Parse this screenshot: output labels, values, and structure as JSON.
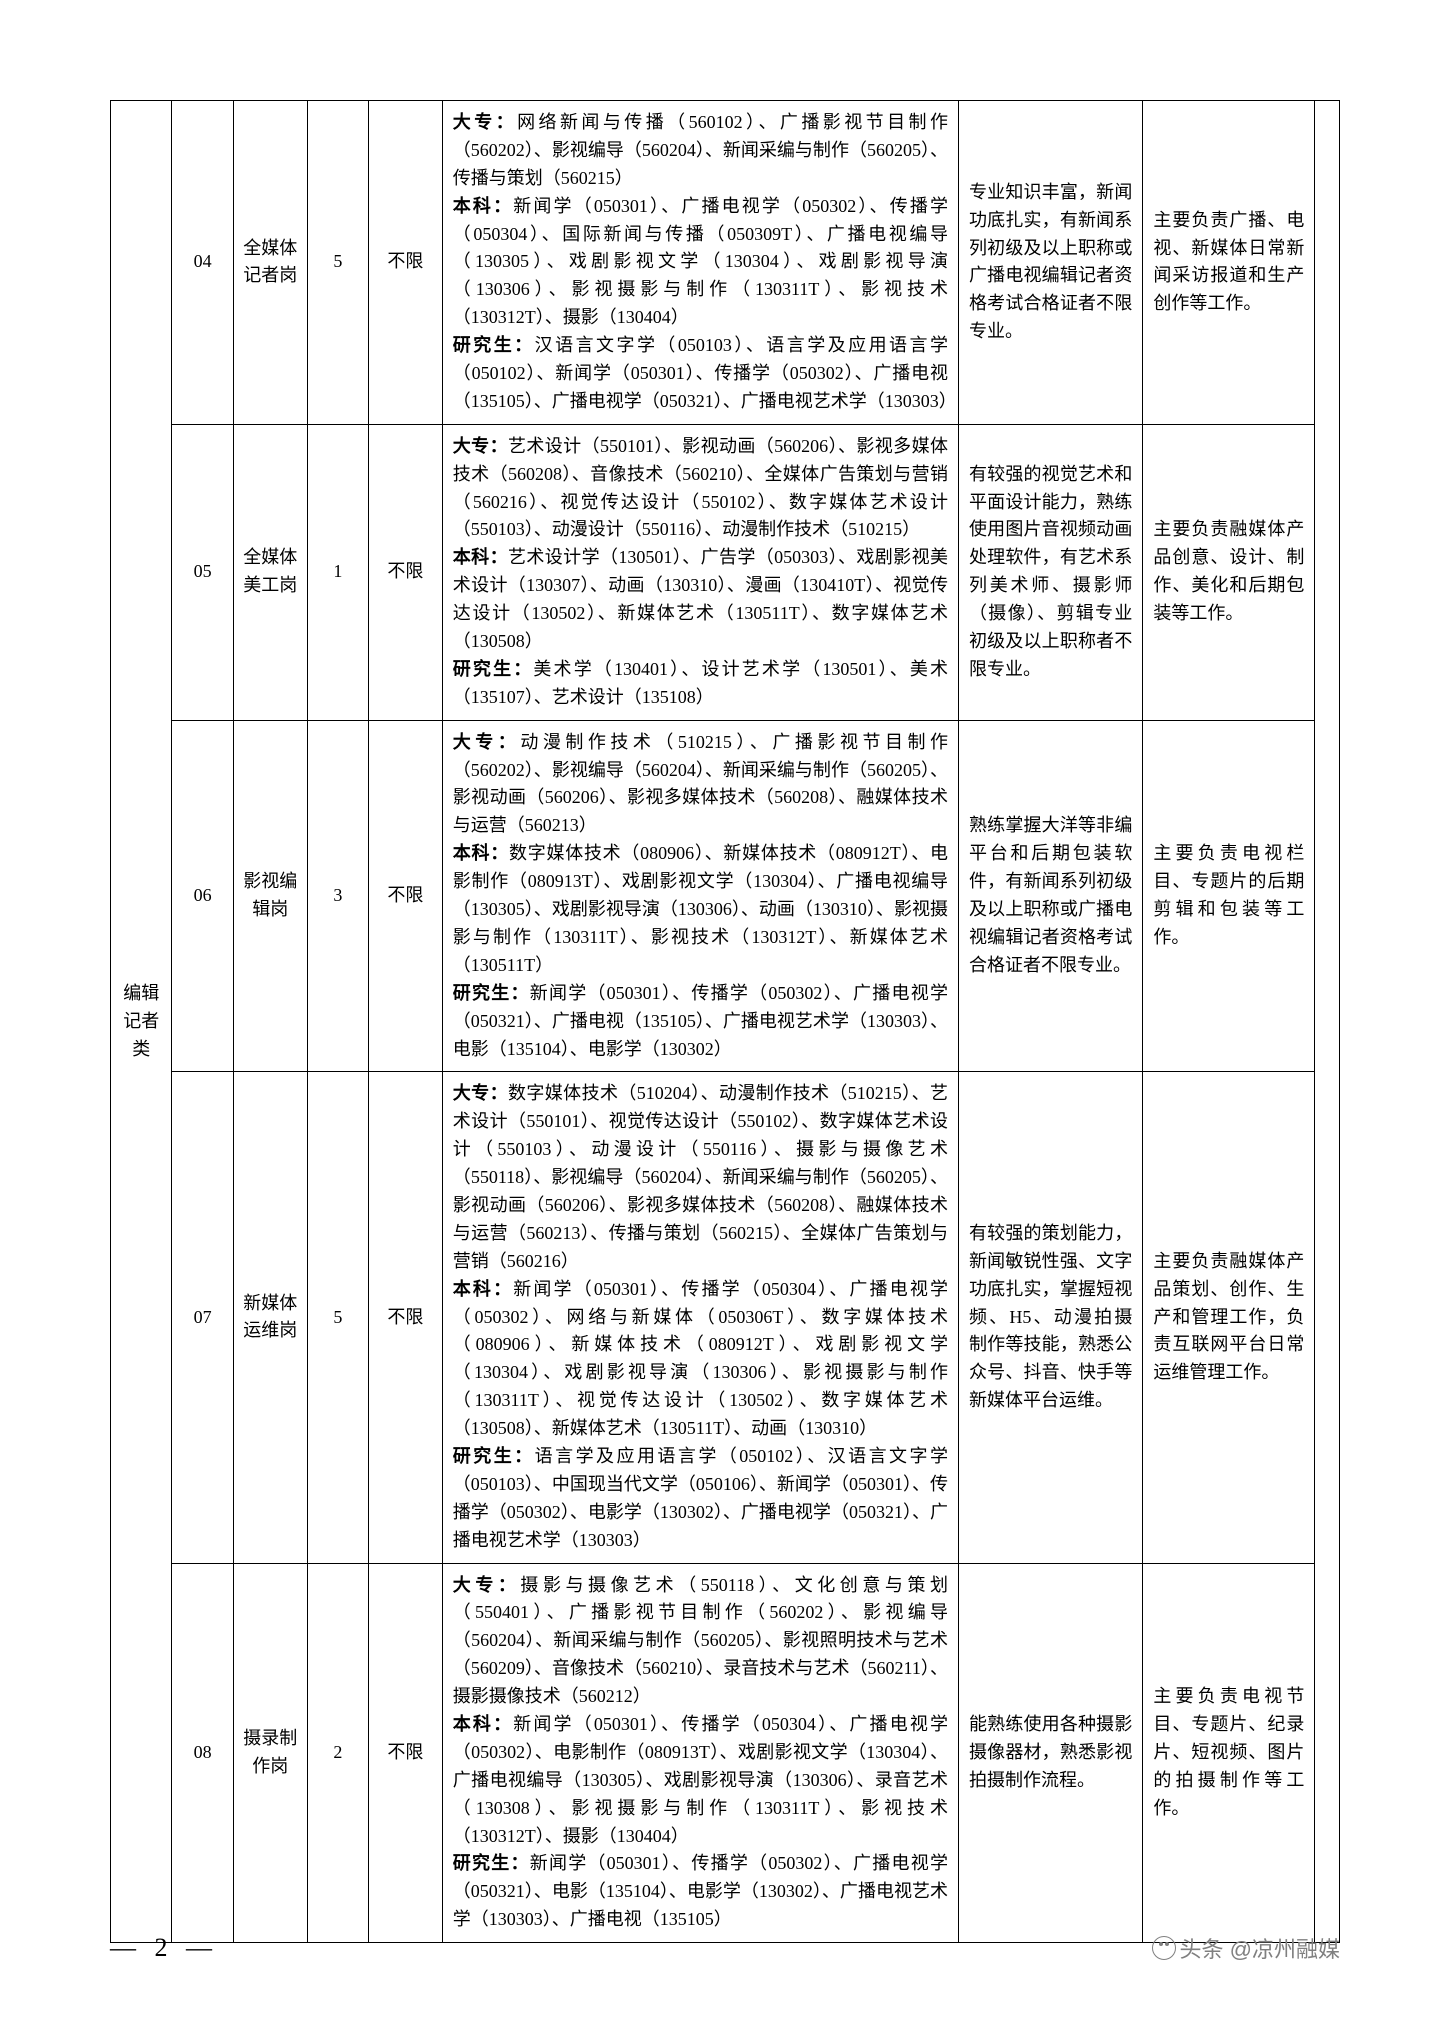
{
  "pageNumber": "2",
  "watermark": "头条 @凉州融媒",
  "category": "编辑记者类",
  "rows": [
    {
      "code": "04",
      "post": "全媒体记者岗",
      "count": "5",
      "limit": "不限",
      "major_dz": "网络新闻与传播（560102）、广播影视节目制作（560202）、影视编导（560204）、新闻采编与制作（560205）、传播与策划（560215）",
      "major_bk": "新闻学（050301）、广播电视学（050302）、传播学（050304）、国际新闻与传播（050309T）、广播电视编导（130305）、戏剧影视文学（130304）、戏剧影视导演（130306）、影视摄影与制作（130311T）、影视技术（130312T）、摄影（130404）",
      "major_yjs": "汉语言文字学（050103）、语言学及应用语言学（050102）、新闻学（050301）、传播学（050302）、广播电视（135105）、广播电视学（050321）、广播电视艺术学（130303）",
      "req": "专业知识丰富，新闻功底扎实，有新闻系列初级及以上职称或广播电视编辑记者资格考试合格证者不限专业。",
      "duty": "主要负责广播、电视、新媒体日常新闻采访报道和生产创作等工作。"
    },
    {
      "code": "05",
      "post": "全媒体美工岗",
      "count": "1",
      "limit": "不限",
      "major_dz": "艺术设计（550101）、影视动画（560206）、影视多媒体技术（560208）、音像技术（560210）、全媒体广告策划与营销（560216）、视觉传达设计（550102）、数字媒体艺术设计（550103）、动漫设计（550116）、动漫制作技术（510215）",
      "major_bk": "艺术设计学（130501）、广告学（050303）、戏剧影视美术设计（130307）、动画（130310）、漫画（130410T）、视觉传达设计（130502）、新媒体艺术（130511T）、数字媒体艺术（130508）",
      "major_yjs": "美术学（130401）、设计艺术学（130501）、美术（135107）、艺术设计（135108）",
      "req": "有较强的视觉艺术和平面设计能力，熟练使用图片音视频动画处理软件，有艺术系列美术师、摄影师（摄像）、剪辑专业初级及以上职称者不限专业。",
      "duty": "主要负责融媒体产品创意、设计、制作、美化和后期包装等工作。"
    },
    {
      "code": "06",
      "post": "影视编辑岗",
      "count": "3",
      "limit": "不限",
      "major_dz": "动漫制作技术（510215）、广播影视节目制作（560202）、影视编导（560204）、新闻采编与制作（560205）、影视动画（560206）、影视多媒体技术（560208）、融媒体技术与运营（560213）",
      "major_bk": "数字媒体技术（080906）、新媒体技术（080912T）、电影制作（080913T）、戏剧影视文学（130304）、广播电视编导（130305）、戏剧影视导演（130306）、动画（130310）、影视摄影与制作（130311T）、影视技术（130312T）、新媒体艺术（130511T）",
      "major_yjs": "新闻学（050301）、传播学（050302）、广播电视学（050321）、广播电视（135105）、广播电视艺术学（130303）、电影（135104）、电影学（130302）",
      "req": "熟练掌握大洋等非编平台和后期包装软件，有新闻系列初级及以上职称或广播电视编辑记者资格考试合格证者不限专业。",
      "duty": "主要负责电视栏目、专题片的后期剪辑和包装等工作。"
    },
    {
      "code": "07",
      "post": "新媒体运维岗",
      "count": "5",
      "limit": "不限",
      "major_dz": "数字媒体技术（510204）、动漫制作技术（510215）、艺术设计（550101）、视觉传达设计（550102）、数字媒体艺术设计（550103）、动漫设计（550116）、摄影与摄像艺术（550118）、影视编导（560204）、新闻采编与制作（560205）、影视动画（560206）、影视多媒体技术（560208）、融媒体技术与运营（560213）、传播与策划（560215）、全媒体广告策划与营销（560216）",
      "major_bk": "新闻学（050301）、传播学（050304）、广播电视学（050302）、网络与新媒体（050306T）、数字媒体技术（080906）、新媒体技术（080912T）、戏剧影视文学（130304）、戏剧影视导演（130306）、影视摄影与制作（130311T）、视觉传达设计（130502）、数字媒体艺术（130508）、新媒体艺术（130511T）、动画（130310）",
      "major_yjs": "语言学及应用语言学（050102）、汉语言文字学（050103）、中国现当代文学（050106）、新闻学（050301）、传播学（050302）、电影学（130302）、广播电视学（050321）、广播电视艺术学（130303）",
      "req": "有较强的策划能力，新闻敏锐性强、文字功底扎实，掌握短视频、H5、动漫拍摄制作等技能，熟悉公众号、抖音、快手等新媒体平台运维。",
      "duty": "主要负责融媒体产品策划、创作、生产和管理工作，负责互联网平台日常运维管理工作。"
    },
    {
      "code": "08",
      "post": "摄录制作岗",
      "count": "2",
      "limit": "不限",
      "major_dz": "摄影与摄像艺术（550118）、文化创意与策划（550401）、广播影视节目制作（560202）、影视编导（560204）、新闻采编与制作（560205）、影视照明技术与艺术（560209）、音像技术（560210）、录音技术与艺术（560211）、摄影摄像技术（560212）",
      "major_bk": "新闻学（050301）、传播学（050304）、广播电视学（050302）、电影制作（080913T）、戏剧影视文学（130304）、广播电视编导（130305）、戏剧影视导演（130306）、录音艺术（130308）、影视摄影与制作（130311T）、影视技术（130312T）、摄影（130404）",
      "major_yjs": "新闻学（050301）、传播学（050302）、广播电视学（050321）、电影（135104）、电影学（130302）、广播电视艺术学（130303）、广播电视（135105）",
      "req": "能熟练使用各种摄影摄像器材，熟悉影视拍摄制作流程。",
      "duty": "主要负责电视节目、专题片、纪录片、短视频、图片的拍摄制作等工作。"
    }
  ],
  "labels": {
    "dz": "大专：",
    "bk": "本科：",
    "yjs": "研究生："
  }
}
